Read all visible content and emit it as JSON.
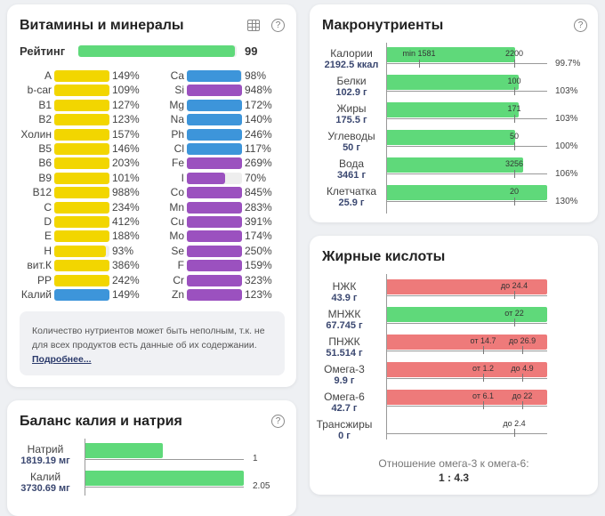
{
  "colors": {
    "green": "#5fd97a",
    "red": "#ee7a7a",
    "yellow": "#f2d600",
    "blue": "#3d95da",
    "purple": "#9b51bf"
  },
  "vitamins": {
    "title": "Витамины и минералы",
    "table_icon": "table-icon",
    "help_icon": "?",
    "rating": {
      "label": "Рейтинг",
      "value": "99",
      "fraction": 0.99
    },
    "left": [
      {
        "label": "A",
        "pct": "149%",
        "v": 149,
        "color": "yellow"
      },
      {
        "label": "b-car",
        "pct": "109%",
        "v": 109,
        "color": "yellow"
      },
      {
        "label": "B1",
        "pct": "127%",
        "v": 127,
        "color": "yellow"
      },
      {
        "label": "B2",
        "pct": "123%",
        "v": 123,
        "color": "yellow"
      },
      {
        "label": "Холин",
        "pct": "157%",
        "v": 157,
        "color": "yellow"
      },
      {
        "label": "B5",
        "pct": "146%",
        "v": 146,
        "color": "yellow"
      },
      {
        "label": "B6",
        "pct": "203%",
        "v": 203,
        "color": "yellow"
      },
      {
        "label": "B9",
        "pct": "101%",
        "v": 101,
        "color": "yellow"
      },
      {
        "label": "B12",
        "pct": "988%",
        "v": 988,
        "color": "yellow"
      },
      {
        "label": "C",
        "pct": "234%",
        "v": 234,
        "color": "yellow"
      },
      {
        "label": "D",
        "pct": "412%",
        "v": 412,
        "color": "yellow"
      },
      {
        "label": "E",
        "pct": "188%",
        "v": 188,
        "color": "yellow"
      },
      {
        "label": "H",
        "pct": "93%",
        "v": 93,
        "color": "yellow"
      },
      {
        "label": "вит.К",
        "pct": "386%",
        "v": 386,
        "color": "yellow"
      },
      {
        "label": "PP",
        "pct": "242%",
        "v": 242,
        "color": "yellow"
      },
      {
        "label": "Калий",
        "pct": "149%",
        "v": 149,
        "color": "blue"
      }
    ],
    "right": [
      {
        "label": "Ca",
        "pct": "98%",
        "v": 98,
        "color": "blue"
      },
      {
        "label": "Si",
        "pct": "948%",
        "v": 948,
        "color": "purple"
      },
      {
        "label": "Mg",
        "pct": "172%",
        "v": 172,
        "color": "blue"
      },
      {
        "label": "Na",
        "pct": "140%",
        "v": 140,
        "color": "blue"
      },
      {
        "label": "Ph",
        "pct": "246%",
        "v": 246,
        "color": "blue"
      },
      {
        "label": "Cl",
        "pct": "117%",
        "v": 117,
        "color": "blue"
      },
      {
        "label": "Fe",
        "pct": "269%",
        "v": 269,
        "color": "purple"
      },
      {
        "label": "I",
        "pct": "70%",
        "v": 70,
        "color": "purple"
      },
      {
        "label": "Co",
        "pct": "845%",
        "v": 845,
        "color": "purple"
      },
      {
        "label": "Mn",
        "pct": "283%",
        "v": 283,
        "color": "purple"
      },
      {
        "label": "Cu",
        "pct": "391%",
        "v": 391,
        "color": "purple"
      },
      {
        "label": "Mo",
        "pct": "174%",
        "v": 174,
        "color": "purple"
      },
      {
        "label": "Se",
        "pct": "250%",
        "v": 250,
        "color": "purple"
      },
      {
        "label": "F",
        "pct": "159%",
        "v": 159,
        "color": "purple"
      },
      {
        "label": "Cr",
        "pct": "323%",
        "v": 323,
        "color": "purple"
      },
      {
        "label": "Zn",
        "pct": "123%",
        "v": 123,
        "color": "purple"
      }
    ],
    "note": "Количество нутриентов может быть неполным, т.к. не для всех продуктов есть данные об их содержании.",
    "note_link": "Подробнее..."
  },
  "balance": {
    "title": "Баланс калия и натрия",
    "help_icon": "?",
    "rows": [
      {
        "label": "Натрий",
        "value": "1819.19 мг",
        "ratio": "1",
        "fraction": 0.49
      },
      {
        "label": "Калий",
        "value": "3730.69 мг",
        "ratio": "2.05",
        "fraction": 1.0
      }
    ]
  },
  "macros": {
    "title": "Макронутриенты",
    "help_icon": "?",
    "rows": [
      {
        "label": "Калории",
        "value": "2192.5 ккал",
        "target": "2200",
        "min": "min 1581",
        "pct": "99.7%",
        "v": 99.7
      },
      {
        "label": "Белки",
        "value": "102.9 г",
        "target": "100",
        "pct": "103%",
        "v": 103
      },
      {
        "label": "Жиры",
        "value": "175.5 г",
        "target": "171",
        "pct": "103%",
        "v": 103
      },
      {
        "label": "Углеводы",
        "value": "50 г",
        "target": "50",
        "pct": "100%",
        "v": 100
      },
      {
        "label": "Вода",
        "value": "3461 г",
        "target": "3256",
        "pct": "106%",
        "v": 106
      },
      {
        "label": "Клетчатка",
        "value": "25.9 г",
        "target": "20",
        "pct": "130%",
        "v": 130
      }
    ]
  },
  "fats": {
    "title": "Жирные кислоты",
    "rows": [
      {
        "label": "НЖК",
        "value": "43.9 г",
        "status": "red",
        "marks": [
          {
            "t": "до 24.4",
            "p": "hi1"
          }
        ]
      },
      {
        "label": "МНЖК",
        "value": "67.745 г",
        "status": "green",
        "marks": [
          {
            "t": "от 22",
            "p": "hi1"
          }
        ]
      },
      {
        "label": "ПНЖК",
        "value": "51.514 г",
        "status": "red",
        "marks": [
          {
            "t": "от 14.7",
            "p": "lo"
          },
          {
            "t": "до 26.9",
            "p": "hi"
          }
        ]
      },
      {
        "label": "Омега-3",
        "value": "9.9 г",
        "status": "red",
        "marks": [
          {
            "t": "от 1.2",
            "p": "lo"
          },
          {
            "t": "до 4.9",
            "p": "hi"
          }
        ]
      },
      {
        "label": "Омега-6",
        "value": "42.7 г",
        "status": "red",
        "marks": [
          {
            "t": "от 6.1",
            "p": "lo"
          },
          {
            "t": "до 22",
            "p": "hi"
          }
        ]
      },
      {
        "label": "Трансжиры",
        "value": "0 г",
        "status": "none",
        "marks": [
          {
            "t": "до 2.4",
            "p": "hi1"
          }
        ]
      }
    ],
    "ratio_label": "Отношение омега-3 к омега-6:",
    "ratio_value": "1 : 4.3"
  }
}
